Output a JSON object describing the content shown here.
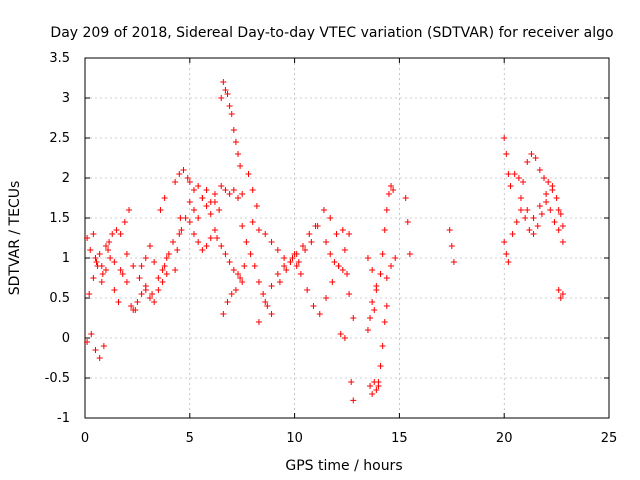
{
  "chart_data": {
    "type": "scatter",
    "title": "Day 209 of 2018, Sidereal Day-to-day VTEC variation (SDTVAR) for receiver algo",
    "xlabel": "GPS time / hours",
    "ylabel": "SDTVAR / TECUs",
    "xlim": [
      0,
      25
    ],
    "ylim": [
      -1,
      3.5
    ],
    "x_ticks": [
      "0",
      "5",
      "10",
      "15",
      "20",
      "25"
    ],
    "y_ticks": [
      "-1",
      "-0.5",
      "0",
      "0.5",
      "1",
      "1.5",
      "2",
      "2.5",
      "3",
      "3.5"
    ],
    "grid": true,
    "marker": "+",
    "colors": {
      "points": "#ff0000"
    },
    "series_segments": [
      {
        "x": [
          0.1,
          0.3,
          0.5,
          0.7,
          0.9
        ],
        "y": [
          -0.05,
          0.05,
          -0.15,
          -0.25,
          -0.1
        ]
      },
      {
        "x": [
          0.1,
          0.25,
          0.4,
          0.55,
          0.7,
          0.85,
          1.0,
          1.15,
          1.3,
          1.5,
          1.7,
          1.9,
          2.1
        ],
        "y": [
          1.25,
          1.1,
          1.3,
          0.95,
          1.05,
          0.8,
          1.15,
          1.2,
          1.3,
          1.35,
          1.3,
          1.45,
          1.6
        ]
      },
      {
        "x": [
          0.2,
          0.4,
          0.6,
          0.8,
          1.0,
          1.2,
          1.4,
          1.6,
          1.8,
          2.0,
          2.2,
          2.4
        ],
        "y": [
          0.55,
          0.75,
          0.9,
          0.7,
          0.85,
          1.0,
          0.6,
          0.45,
          0.8,
          0.7,
          0.4,
          0.35
        ]
      },
      {
        "x": [
          0.5,
          0.8,
          1.1,
          1.4,
          1.7,
          2.0,
          2.3,
          2.6,
          2.9,
          3.2
        ],
        "y": [
          1.0,
          0.9,
          1.1,
          0.95,
          0.85,
          1.05,
          0.9,
          0.75,
          0.65,
          0.55
        ]
      },
      {
        "x": [
          2.3,
          2.5,
          2.7,
          2.9,
          3.1,
          3.3,
          3.5,
          3.7,
          3.9
        ],
        "y": [
          0.35,
          0.45,
          0.55,
          0.6,
          0.5,
          0.45,
          0.6,
          0.7,
          0.8
        ]
      },
      {
        "x": [
          2.7,
          2.9,
          3.1,
          3.3,
          3.5,
          3.7,
          3.9
        ],
        "y": [
          0.9,
          1.0,
          1.15,
          0.95,
          0.75,
          0.85,
          1.0
        ]
      },
      {
        "x": [
          3.6,
          3.8
        ],
        "y": [
          1.6,
          1.75
        ]
      },
      {
        "x": [
          3.8,
          4.0,
          4.2
        ],
        "y": [
          0.9,
          1.05,
          1.2
        ]
      },
      {
        "x": [
          4.3,
          4.4,
          4.5,
          4.55
        ],
        "y": [
          0.85,
          1.1,
          1.3,
          1.5
        ]
      },
      {
        "x": [
          4.3,
          4.5,
          4.7,
          4.9
        ],
        "y": [
          1.95,
          2.05,
          2.1,
          2.0
        ]
      },
      {
        "x": [
          4.6,
          4.8,
          5.0,
          5.2,
          5.4,
          5.6,
          5.8,
          6.0,
          6.2,
          6.4
        ],
        "y": [
          1.35,
          1.5,
          1.7,
          1.6,
          1.5,
          1.75,
          1.65,
          1.55,
          1.7,
          1.6
        ]
      },
      {
        "x": [
          5.0,
          5.2,
          5.4,
          5.6,
          5.8,
          6.0,
          6.2
        ],
        "y": [
          1.95,
          1.85,
          1.9,
          1.75,
          1.85,
          1.7,
          1.8
        ]
      },
      {
        "x": [
          5.0,
          5.2,
          5.4,
          5.6,
          5.8,
          6.0,
          6.2
        ],
        "y": [
          1.45,
          1.3,
          1.2,
          1.1,
          1.15,
          1.25,
          1.35
        ]
      },
      {
        "x": [
          6.5,
          6.6,
          6.7,
          6.8,
          6.9,
          7.0,
          7.1,
          7.2,
          7.3,
          7.4
        ],
        "y": [
          3.0,
          3.2,
          3.1,
          3.05,
          2.9,
          2.8,
          2.6,
          2.45,
          2.3,
          2.15
        ]
      },
      {
        "x": [
          6.5,
          6.7,
          6.9,
          7.1,
          7.3,
          7.5
        ],
        "y": [
          1.9,
          1.85,
          1.8,
          1.85,
          1.75,
          1.8
        ]
      },
      {
        "x": [
          6.3,
          6.5,
          6.7,
          6.9,
          7.1,
          7.3,
          7.5
        ],
        "y": [
          1.25,
          1.15,
          1.05,
          0.95,
          0.85,
          0.8,
          0.7
        ]
      },
      {
        "x": [
          6.6,
          6.8,
          7.0,
          7.2,
          7.4,
          7.6
        ],
        "y": [
          0.3,
          0.45,
          0.55,
          0.6,
          0.75,
          0.9
        ]
      },
      {
        "x": [
          7.5,
          7.7,
          7.9,
          8.1,
          8.3,
          8.5,
          8.7,
          8.9
        ],
        "y": [
          1.4,
          1.2,
          1.05,
          0.9,
          0.7,
          0.55,
          0.4,
          0.3
        ]
      },
      {
        "x": [
          7.8,
          8.0,
          8.2
        ],
        "y": [
          2.05,
          1.85,
          1.65
        ]
      },
      {
        "x": [
          8.0,
          8.3,
          8.6,
          8.9,
          9.2,
          9.5,
          9.8,
          10.1
        ],
        "y": [
          1.45,
          1.35,
          1.3,
          1.2,
          1.1,
          1.0,
          0.95,
          0.9
        ]
      },
      {
        "x": [
          8.3,
          8.6,
          8.9,
          9.2,
          9.5,
          9.8,
          10.1,
          10.4,
          10.7,
          11.0
        ],
        "y": [
          0.2,
          0.45,
          0.65,
          0.8,
          0.9,
          0.95,
          1.05,
          1.15,
          1.3,
          1.4
        ]
      },
      {
        "x": [
          9.3,
          9.6,
          9.9,
          10.2,
          10.5,
          10.8,
          11.1,
          11.4,
          11.7,
          12.0
        ],
        "y": [
          0.7,
          0.85,
          1.0,
          0.95,
          1.1,
          1.2,
          1.4,
          1.6,
          1.5,
          1.3
        ]
      },
      {
        "x": [
          10.0,
          10.3,
          10.6,
          10.9,
          11.2,
          11.5,
          11.8,
          12.1,
          12.4
        ],
        "y": [
          1.05,
          0.8,
          0.6,
          0.4,
          0.3,
          0.5,
          0.7,
          0.9,
          1.1
        ]
      },
      {
        "x": [
          11.5,
          11.7,
          11.9,
          12.1,
          12.3,
          12.5
        ],
        "y": [
          1.2,
          1.05,
          0.95,
          0.9,
          0.85,
          0.8
        ]
      },
      {
        "x": [
          12.3,
          12.6
        ],
        "y": [
          1.35,
          1.3
        ]
      },
      {
        "x": [
          12.2,
          12.4
        ],
        "y": [
          0.05,
          0.0
        ]
      },
      {
        "x": [
          12.7,
          12.8
        ],
        "y": [
          -0.55,
          -0.78
        ]
      },
      {
        "x": [
          12.6,
          12.8
        ],
        "y": [
          0.55,
          0.25
        ]
      },
      {
        "x": [
          13.6,
          13.7,
          13.8,
          13.9,
          14.0
        ],
        "y": [
          -0.6,
          -0.7,
          -0.55,
          -0.65,
          -0.6
        ]
      },
      {
        "x": [
          13.5,
          13.6,
          13.7,
          13.8,
          13.9
        ],
        "y": [
          0.1,
          0.25,
          0.45,
          0.35,
          0.6
        ]
      },
      {
        "x": [
          13.5,
          13.7,
          13.9,
          14.1
        ],
        "y": [
          1.0,
          0.85,
          0.65,
          0.8
        ]
      },
      {
        "x": [
          14.0,
          14.1,
          14.2,
          14.3,
          14.4
        ],
        "y": [
          -0.55,
          -0.35,
          -0.1,
          0.2,
          0.4
        ]
      },
      {
        "x": [
          14.1,
          14.2,
          14.3,
          14.4,
          14.5,
          14.6,
          14.7
        ],
        "y": [
          0.8,
          1.05,
          1.35,
          1.6,
          1.8,
          1.9,
          1.85
        ]
      },
      {
        "x": [
          14.4,
          14.6,
          14.8
        ],
        "y": [
          0.75,
          0.9,
          1.0
        ]
      },
      {
        "x": [
          15.3,
          15.4,
          15.5
        ],
        "y": [
          1.75,
          1.45,
          1.05
        ]
      },
      {
        "x": [
          17.4,
          17.5,
          17.6
        ],
        "y": [
          1.35,
          1.15,
          0.95
        ]
      },
      {
        "x": [
          20.0,
          20.1,
          20.2
        ],
        "y": [
          2.5,
          2.3,
          2.05
        ]
      },
      {
        "x": [
          20.0,
          20.1,
          20.2
        ],
        "y": [
          1.2,
          1.05,
          0.95
        ]
      },
      {
        "x": [
          20.3,
          20.5,
          20.7,
          20.9,
          21.1,
          21.3,
          21.5,
          21.7,
          21.9,
          22.1,
          22.3,
          22.5,
          22.7
        ],
        "y": [
          1.9,
          2.05,
          2.0,
          1.95,
          2.2,
          2.3,
          2.25,
          2.1,
          2.0,
          1.95,
          1.85,
          1.75,
          1.55
        ]
      },
      {
        "x": [
          20.4,
          20.6,
          20.8,
          21.0,
          21.2,
          21.4,
          21.6,
          21.8,
          22.0,
          22.2,
          22.4,
          22.6,
          22.8
        ],
        "y": [
          1.3,
          1.45,
          1.6,
          1.5,
          1.35,
          1.3,
          1.4,
          1.55,
          1.7,
          1.6,
          1.45,
          1.35,
          1.2
        ]
      },
      {
        "x": [
          20.8,
          21.1,
          21.4,
          21.7,
          22.0,
          22.3,
          22.6,
          22.8
        ],
        "y": [
          1.75,
          1.6,
          1.5,
          1.65,
          1.8,
          1.9,
          1.6,
          1.4
        ]
      },
      {
        "x": [
          22.6,
          22.7,
          22.8
        ],
        "y": [
          0.6,
          0.5,
          0.55
        ]
      }
    ]
  }
}
